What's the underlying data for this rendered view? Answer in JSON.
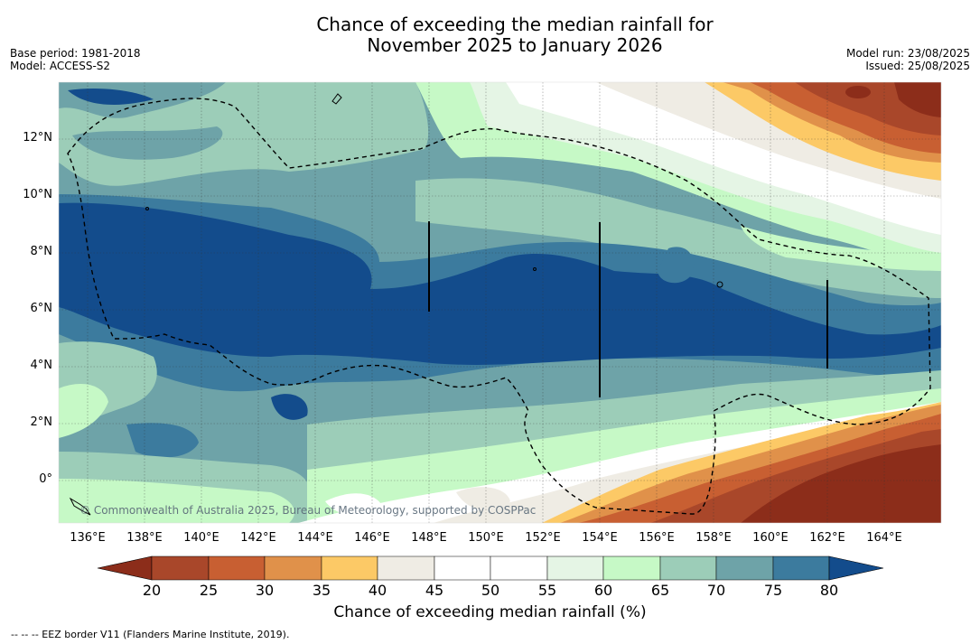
{
  "header": {
    "title_line1": "Chance of exceeding the median rainfall for",
    "title_line2": "November 2025 to January 2026",
    "base_period": "Base period: 1981-2018",
    "model": "Model: ACCESS-S2",
    "model_run": "Model run: 23/08/2025",
    "issued": "Issued: 25/08/2025"
  },
  "map": {
    "credit": "© Commonwealth of Australia 2025, Bureau of Meteorology, supported by COSPPac",
    "lon_ticks": [
      "136°E",
      "138°E",
      "140°E",
      "142°E",
      "144°E",
      "146°E",
      "148°E",
      "150°E",
      "152°E",
      "154°E",
      "156°E",
      "158°E",
      "160°E",
      "162°E",
      "164°E"
    ],
    "lat_ticks": [
      "12°N",
      "10°N",
      "8°N",
      "6°N",
      "4°N",
      "2°N",
      "0°"
    ],
    "lon_range": [
      135,
      166
    ],
    "lat_range": [
      -1.5,
      14
    ]
  },
  "colorbar": {
    "title": "Chance of exceeding median rainfall (%)",
    "labels": [
      "20",
      "25",
      "30",
      "35",
      "40",
      "45",
      "50",
      "55",
      "60",
      "65",
      "70",
      "75",
      "80"
    ],
    "colors": [
      "#8c2d1a",
      "#a9472a",
      "#c85f32",
      "#e0914a",
      "#fcc966",
      "#efece4",
      "#ffffff",
      "#ffffff",
      "#e5f5e5",
      "#c6f9c6",
      "#9ccdb8",
      "#6ea3a8",
      "#3c7b9e",
      "#134c8c"
    ]
  },
  "footnote": "--  --  -- EEZ border V11 (Flanders Marine Institute, 2019)."
}
